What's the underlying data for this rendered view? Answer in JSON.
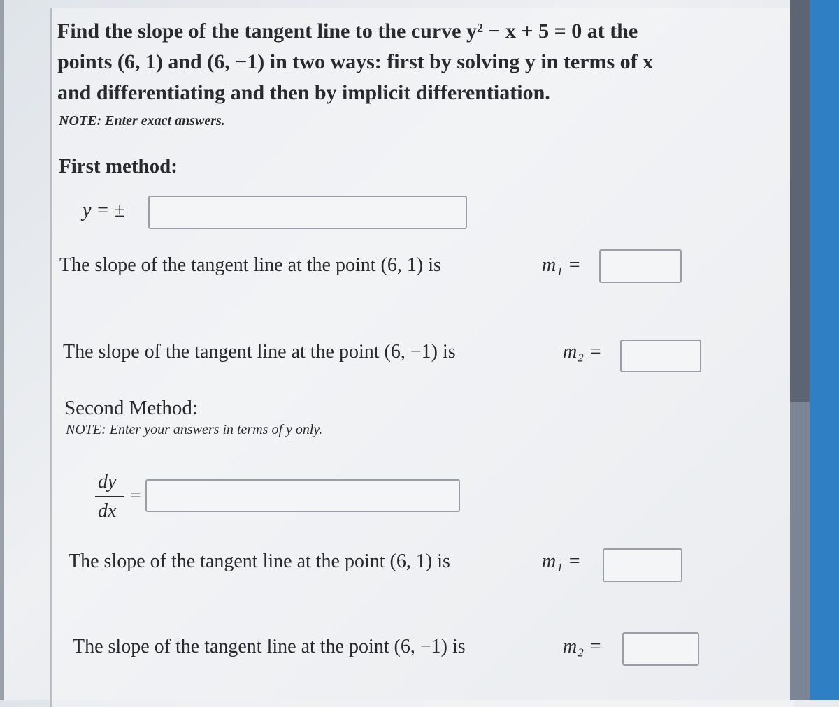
{
  "problem": {
    "lines": [
      "Find the slope of the tangent line to the curve y² − x + 5 = 0 at the",
      "points (6, 1) and (6, −1) in two ways: first by solving y in terms of x",
      "and differentiating and then by implicit differentiation."
    ],
    "note": "NOTE: Enter exact answers."
  },
  "first_method": {
    "heading": "First method:",
    "y_label": "y = ±",
    "slope1": "The slope of the tangent line at the point (6, 1) is",
    "m1": "m₁ =",
    "slope2": "The slope of the tangent line at the point (6, −1) is",
    "m2": "m₂ ="
  },
  "second_method": {
    "heading": "Second Method:",
    "note": "NOTE: Enter your answers in terms of y only.",
    "dy": "dy",
    "dx": "dx",
    "equals": "=",
    "slope1": "The slope of the tangent line at the point (6, 1) is",
    "m1": "m₁ =",
    "slope2": "The slope of the tangent line at the point (6, −1) is",
    "m2": "m₂ ="
  }
}
